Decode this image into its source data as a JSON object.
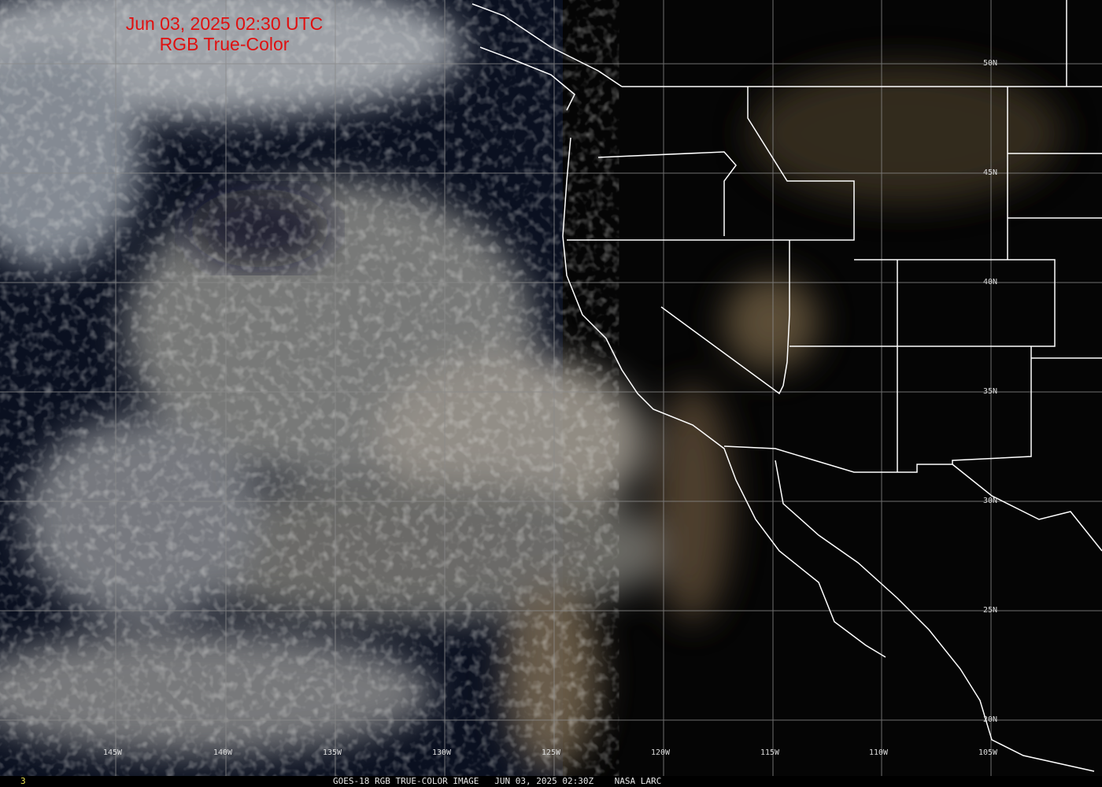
{
  "title": {
    "line1": "Jun 03, 2025 02:30 UTC",
    "line2": "RGB True-Color",
    "color": "#e01010"
  },
  "latitude_labels": [
    "50N",
    "45N",
    "40N",
    "35N",
    "30N",
    "25N",
    "20N"
  ],
  "longitude_labels": [
    "145W",
    "140W",
    "135W",
    "130W",
    "125W",
    "120W",
    "115W",
    "110W",
    "105W"
  ],
  "footer": {
    "frame_number": "3",
    "caption": "GOES-18 RGB TRUE-COLOR IMAGE   JUN 03, 2025 02:30Z    NASA LARC"
  },
  "colors": {
    "grid": "#8a8a8a",
    "boundaries": "#ffffff",
    "ocean": "#0a1020",
    "cloud": "#c8c8c0"
  }
}
